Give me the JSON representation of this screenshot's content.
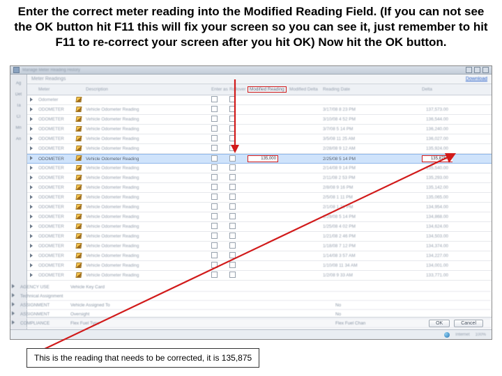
{
  "instruction": "Enter the correct meter reading into the Modified Reading Field. (If you can not see the OK button hit F11 this will fix your screen so you can see it, just remember to hit F11 to re-correct your screen after you hit OK) Now hit the OK button.",
  "caption": "This is the reading that needs to be corrected, it is 135,875",
  "toolbar": {
    "title": "Manage Meter Reading History",
    "help_label": "Help"
  },
  "left_labels": [
    "Ag",
    "Det",
    "Ta",
    "Cl",
    "Mn",
    "An"
  ],
  "panel": {
    "title": "Meter Readings",
    "download": "Download"
  },
  "columns": {
    "meter": "Meter",
    "desc": "Description",
    "enter": "Enter as Delta?",
    "rollover": "Rollover",
    "modreading": "Modified Reading",
    "moddelta": "Modified Delta",
    "readdate": "Reading Date",
    "delta": "Delta"
  },
  "highlighted": {
    "mod_value": "135,000",
    "date": "2/25/08 5 14 PM",
    "delta": "135,875.00"
  },
  "rows": [
    {
      "meter": "Odometer",
      "desc": "",
      "date": "",
      "delta": ""
    },
    {
      "meter": "ODOMETER",
      "desc": "Vehicle Odometer Reading",
      "date": "3/17/08 8 23 PM",
      "delta": "137,573.00"
    },
    {
      "meter": "ODOMETER",
      "desc": "Vehicle Odometer Reading",
      "date": "3/10/08 4 52 PM",
      "delta": "136,544.00"
    },
    {
      "meter": "ODOMETER",
      "desc": "Vehicle Odometer Reading",
      "date": "3/7/08 5 14 PM",
      "delta": "136,240.00"
    },
    {
      "meter": "ODOMETER",
      "desc": "Vehicle Odometer Reading",
      "date": "3/5/08 11 25 AM",
      "delta": "136,027.00"
    },
    {
      "meter": "ODOMETER",
      "desc": "Vehicle Odometer Reading",
      "date": "2/28/08 9 12 AM",
      "delta": "135,924.00"
    },
    {
      "meter": "ODOMETER",
      "desc": "Vehicle Odometer Reading",
      "date": "2/25/08 5 14 PM",
      "delta": "135,875.00",
      "hl": true
    },
    {
      "meter": "ODOMETER",
      "desc": "Vehicle Odometer Reading",
      "date": "2/14/08 9 14 PM",
      "delta": "135,540.00"
    },
    {
      "meter": "ODOMETER",
      "desc": "Vehicle Odometer Reading",
      "date": "2/11/08 2 53 PM",
      "delta": "135,293.00"
    },
    {
      "meter": "ODOMETER",
      "desc": "Vehicle Odometer Reading",
      "date": "2/8/08 9 16 PM",
      "delta": "135,142.00"
    },
    {
      "meter": "ODOMETER",
      "desc": "Vehicle Odometer Reading",
      "date": "2/5/08 1 11 PM",
      "delta": "135,065.00"
    },
    {
      "meter": "ODOMETER",
      "desc": "Vehicle Odometer Reading",
      "date": "2/1/08 1 21 PM",
      "delta": "134,954.00"
    },
    {
      "meter": "ODOMETER",
      "desc": "Vehicle Odometer Reading",
      "date": "1/29/08 5 14 PM",
      "delta": "134,868.00"
    },
    {
      "meter": "ODOMETER",
      "desc": "Vehicle Odometer Reading",
      "date": "1/25/08 4 02 PM",
      "delta": "134,624.00"
    },
    {
      "meter": "ODOMETER",
      "desc": "Vehicle Odometer Reading",
      "date": "1/21/08 2 46 PM",
      "delta": "134,503.00"
    },
    {
      "meter": "ODOMETER",
      "desc": "Vehicle Odometer Reading",
      "date": "1/18/08 7 12 PM",
      "delta": "134,374.00"
    },
    {
      "meter": "ODOMETER",
      "desc": "Vehicle Odometer Reading",
      "date": "1/14/08 3 57 AM",
      "delta": "134,227.00"
    },
    {
      "meter": "ODOMETER",
      "desc": "Vehicle Odometer Reading",
      "date": "1/10/08 11 34 AM",
      "delta": "134,001.00"
    },
    {
      "meter": "ODOMETER",
      "desc": "Vehicle Odometer Reading",
      "date": "1/2/08 9 33 AM",
      "delta": "133,771.00"
    }
  ],
  "outer_rows": [
    {
      "a": "AGENCY USE",
      "b": "Vehicle Key Card"
    },
    {
      "a": "Technical Assignment",
      "b": ""
    },
    {
      "a": "ASSIGNMENT",
      "b": "Vehicle Assigned To"
    },
    {
      "a": "ASSIGNMENT",
      "b": "Oversight"
    },
    {
      "a": "COMPLIANCE",
      "b": "Flex Fuel Type"
    }
  ],
  "outer_extra": [
    "No",
    "No",
    "Flex Fuel Chan"
  ],
  "buttons": {
    "ok": "OK",
    "cancel": "Cancel"
  },
  "status": {
    "internet": "Internet",
    "pct": "100%"
  },
  "colors": {
    "red": "#d11a1a",
    "hl": "#cfe3fb"
  }
}
